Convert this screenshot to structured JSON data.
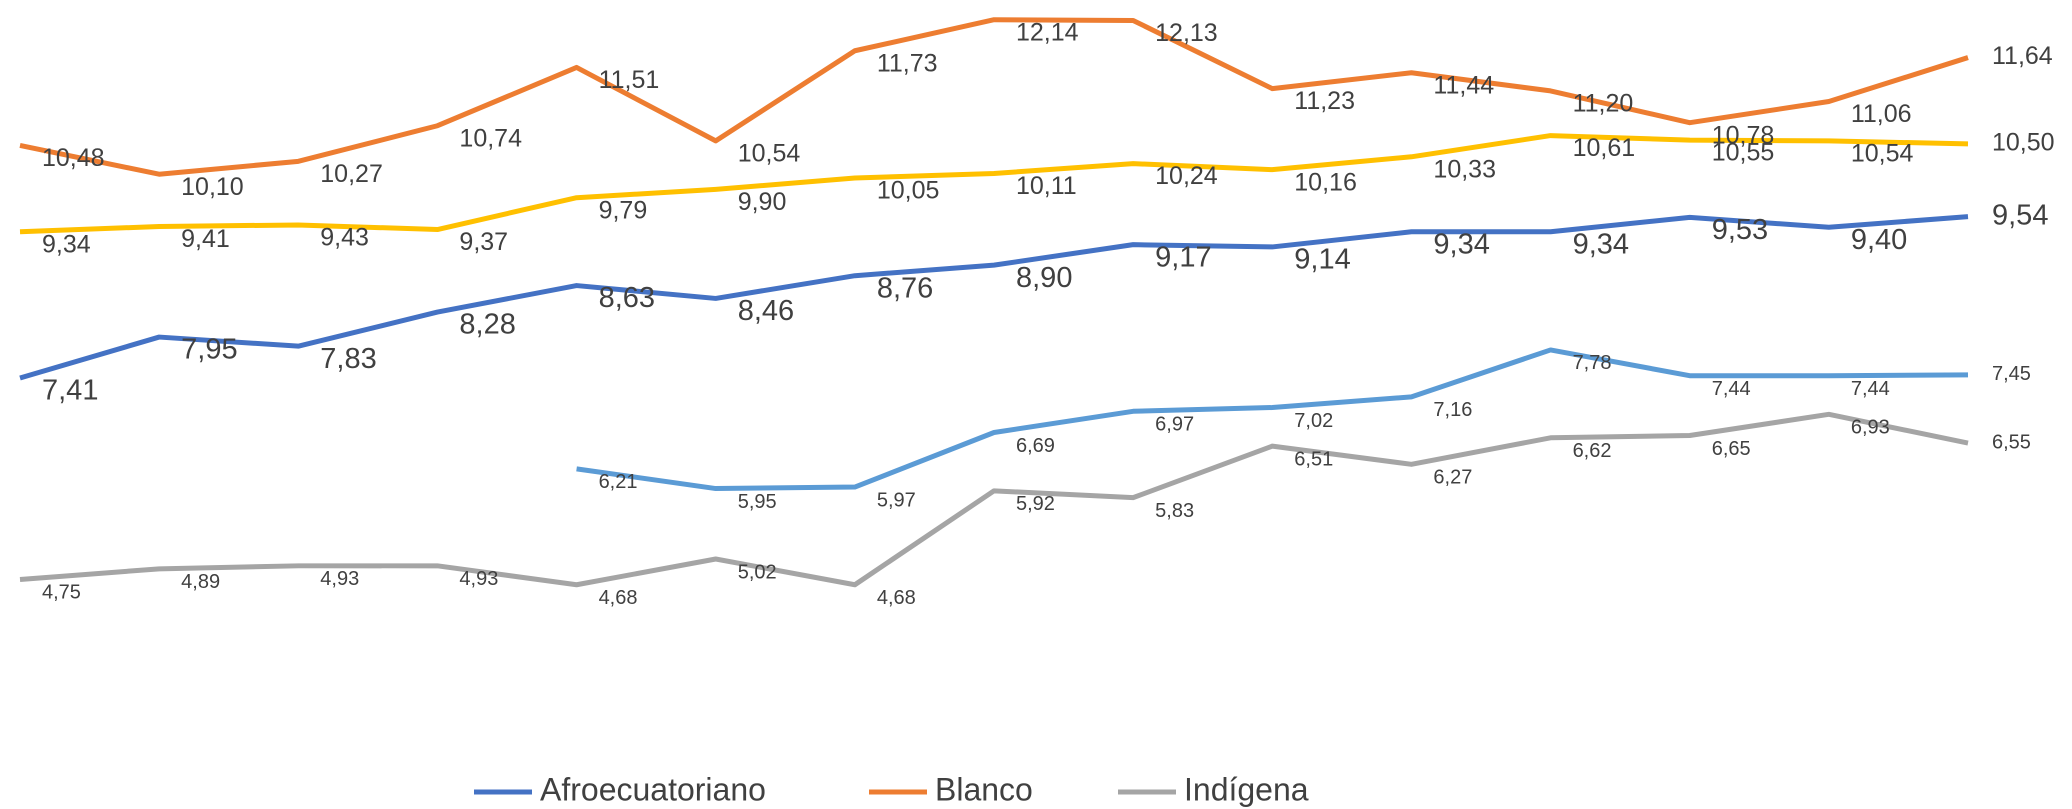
{
  "chart_data": {
    "type": "line",
    "categories": [
      null,
      null,
      null,
      null,
      null,
      null,
      null,
      null,
      null,
      null,
      null,
      null,
      null,
      null,
      null
    ],
    "ylim": [
      3,
      12.4
    ],
    "legend": "bottom",
    "series": [
      {
        "name": "Afroecuatoriano",
        "color": "#4472c4",
        "values": [
          7.41,
          7.95,
          7.83,
          8.28,
          8.63,
          8.46,
          8.76,
          8.9,
          9.17,
          9.14,
          9.34,
          9.34,
          9.53,
          9.4,
          9.54
        ],
        "value_labels": [
          "7,41",
          "7,95",
          "7,83",
          "8,28",
          "8,63",
          "8,46",
          "8,76",
          "8,90",
          "9,17",
          "9,14",
          "9,34",
          "9,34",
          "9,53",
          "9,40",
          "9,54"
        ]
      },
      {
        "name": "Blanco",
        "color": "#ed7d31",
        "values": [
          10.48,
          10.1,
          10.27,
          10.74,
          11.51,
          10.54,
          11.73,
          12.14,
          12.13,
          11.23,
          11.44,
          11.2,
          10.78,
          11.06,
          11.64
        ],
        "value_labels": [
          "10,48",
          "10,10",
          "10,27",
          "10,74",
          "11,51",
          "10,54",
          "11,73",
          "12,14",
          "12,13",
          "11,23",
          "11,44",
          "11,20",
          "10,78",
          "11,06",
          "11,64"
        ]
      },
      {
        "name": "Indígena",
        "color": "#a5a5a5",
        "values": [
          4.75,
          4.89,
          4.93,
          4.93,
          4.68,
          5.02,
          4.68,
          5.92,
          5.83,
          6.51,
          6.27,
          6.62,
          6.65,
          6.93,
          6.55
        ],
        "value_labels": [
          "4,75",
          "4,89",
          "4,93",
          "4,93",
          "4,68",
          "5,02",
          "4,68",
          "5,92",
          "5,83",
          "6,51",
          "6,27",
          "6,62",
          "6,65",
          "6,93",
          "6,55"
        ]
      },
      {
        "color": "#ffc000",
        "values": [
          9.34,
          9.41,
          9.43,
          9.37,
          9.79,
          9.9,
          10.05,
          10.11,
          10.24,
          10.16,
          10.33,
          10.61,
          10.55,
          10.54,
          10.5
        ],
        "value_labels": [
          "9,34",
          "9,41",
          "9,43",
          "9,37",
          "9,79",
          "9,90",
          "10,05",
          "10,11",
          "10,24",
          "10,16",
          "10,33",
          "10,61",
          "10,55",
          "10,54",
          "10,50"
        ]
      },
      {
        "color": "#5b9bd5",
        "values": [
          null,
          null,
          null,
          null,
          6.21,
          5.95,
          5.97,
          6.69,
          6.97,
          7.02,
          7.16,
          7.78,
          7.44,
          7.44,
          7.45
        ],
        "value_labels": [
          null,
          null,
          null,
          null,
          "6,21",
          "5,95",
          "5,97",
          "6,69",
          "6,97",
          "7,02",
          "7,16",
          "7,78",
          "7,44",
          "7,44",
          "7,45"
        ]
      }
    ]
  }
}
